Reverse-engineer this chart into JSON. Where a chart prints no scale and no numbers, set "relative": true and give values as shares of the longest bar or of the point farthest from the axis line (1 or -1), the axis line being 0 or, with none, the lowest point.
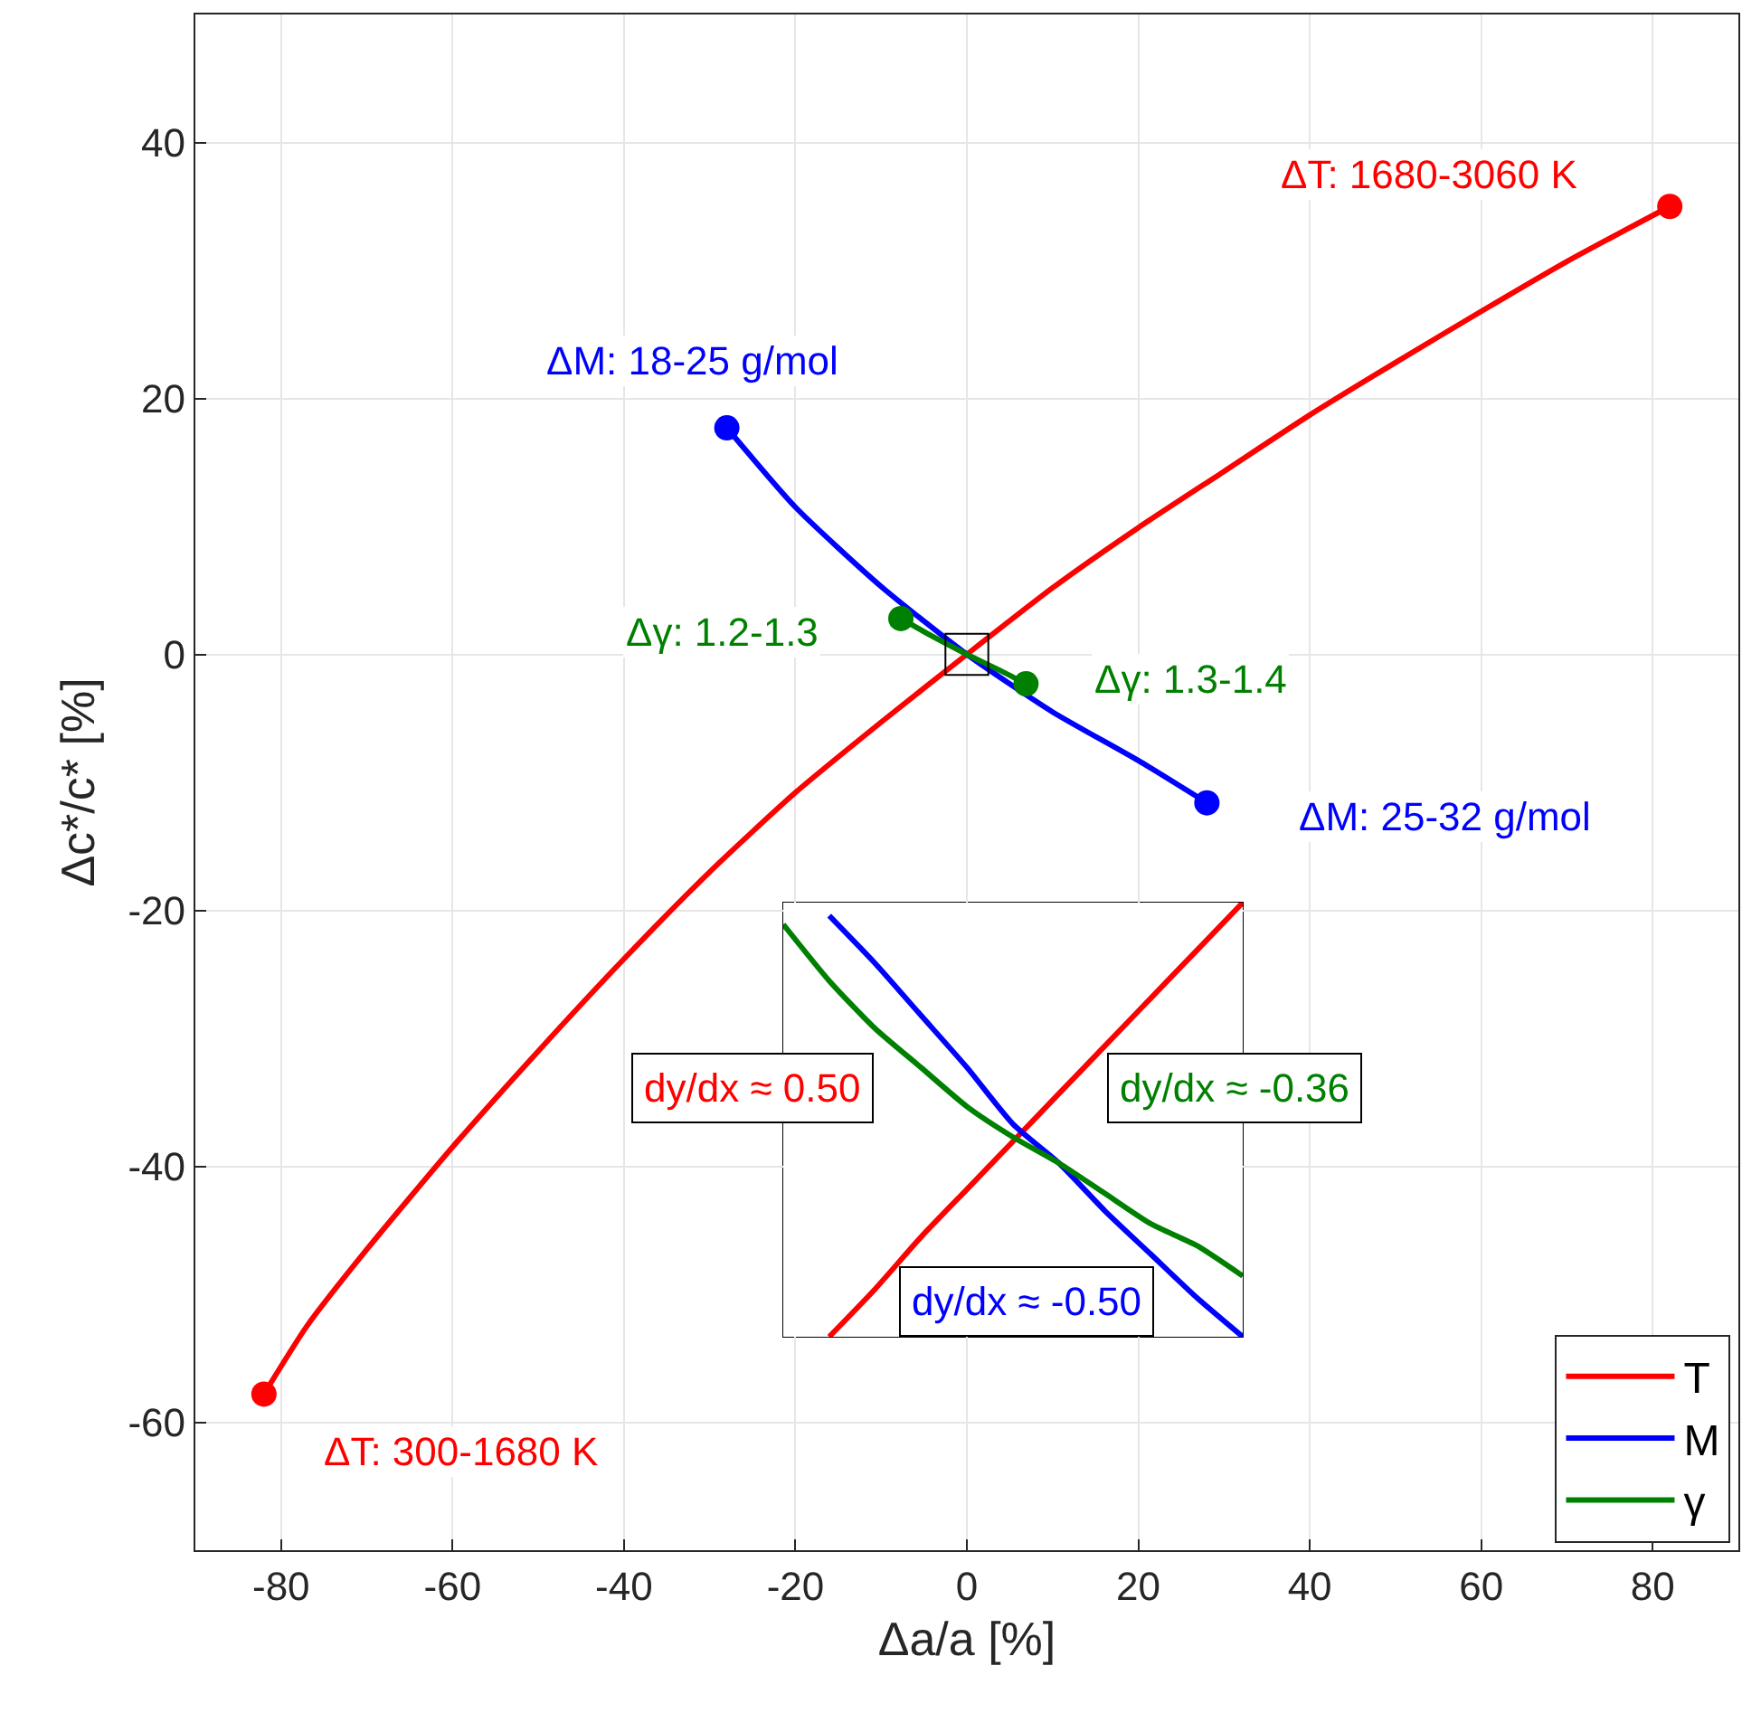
{
  "chart_data": [
    {
      "type": "line",
      "xlabel": "Δa/a [%]",
      "ylabel": "Δc*/c* [%]",
      "xlim": [
        -90,
        90
      ],
      "ylim": [
        -70,
        50
      ],
      "xticks": [
        -80,
        -60,
        -40,
        -20,
        0,
        20,
        40,
        60,
        80
      ],
      "yticks": [
        -60,
        -40,
        -20,
        0,
        20,
        40
      ],
      "grid": true,
      "legend": "bottom right",
      "line_style": "solid",
      "series": [
        {
          "name": "T",
          "color": "#ff0000",
          "x": [
            -82,
            -77,
            -70,
            -60,
            -50,
            -40,
            -30,
            -20,
            -10,
            0,
            10,
            20,
            30,
            40,
            50,
            60,
            70,
            82
          ],
          "values": [
            -57.8,
            -52.5,
            -46.5,
            -38.5,
            -31,
            -23.8,
            -17,
            -10.8,
            -5.3,
            0,
            5.2,
            9.9,
            14.3,
            18.7,
            22.8,
            26.8,
            30.7,
            35
          ]
        },
        {
          "name": "M",
          "color": "#0000ff",
          "x": [
            -28,
            -20,
            -10,
            0,
            10,
            20,
            28
          ],
          "values": [
            17.7,
            11.5,
            5.3,
            0,
            -4.5,
            -8.3,
            -11.6
          ]
        },
        {
          "name": "γ",
          "color": "#008000",
          "x": [
            -7.7,
            -4,
            0,
            4,
            6.9
          ],
          "values": [
            2.8,
            1.4,
            0,
            -1.3,
            -2.3
          ]
        },
        {
          "type": "scatter",
          "marker": "circle",
          "color": "#ff0000",
          "x": [
            -82,
            82
          ],
          "values": [
            -57.8,
            35
          ]
        },
        {
          "type": "scatter",
          "marker": "circle",
          "color": "#0000ff",
          "x": [
            -28,
            28
          ],
          "values": [
            17.7,
            -11.6
          ]
        },
        {
          "type": "scatter",
          "marker": "circle",
          "color": "#008000",
          "x": [
            -7.7,
            6.9
          ],
          "values": [
            2.8,
            -2.3
          ]
        }
      ],
      "annotations": [
        {
          "text": "ΔT: 1680-3060 K",
          "x": 82,
          "y": 35
        },
        {
          "text": "ΔT: 300-1680 K",
          "x": -82,
          "y": -57.8
        },
        {
          "text": "ΔM: 18-25 g/mol",
          "x": -28,
          "y": 17.7
        },
        {
          "text": "ΔM: 25-32 g/mol",
          "x": 28,
          "y": -11.6
        },
        {
          "text": "Δγ: 1.2-1.3",
          "x": -7.7,
          "y": 2.8
        },
        {
          "text": "Δγ: 1.3-1.4",
          "x": 6.9,
          "y": -2.3
        }
      ]
    },
    {
      "type": "line",
      "relative": true,
      "line_style": "solid",
      "categories": [
        null,
        null,
        null,
        null,
        null,
        null,
        null,
        null,
        null,
        null,
        null
      ],
      "series": [
        {
          "color": "#ff0000",
          "values": [
            null,
            0,
            0.11,
            0.23,
            0.34,
            0.45,
            0.56,
            0.67,
            0.78,
            0.89,
            1
          ]
        },
        {
          "color": "#0000ff",
          "values": [
            null,
            0.97,
            0.86,
            0.74,
            0.62,
            0.49,
            0.4,
            0.29,
            0.19,
            0.09,
            0
          ]
        },
        {
          "color": "#008000",
          "values": [
            0.95,
            0.82,
            0.71,
            0.62,
            0.53,
            0.46,
            0.4,
            0.33,
            0.26,
            0.21,
            0.14
          ]
        }
      ],
      "annotations": [
        "dy/dx ≈ 0.50",
        "dy/dx ≈ -0.50",
        "dy/dx ≈ -0.36"
      ]
    }
  ]
}
